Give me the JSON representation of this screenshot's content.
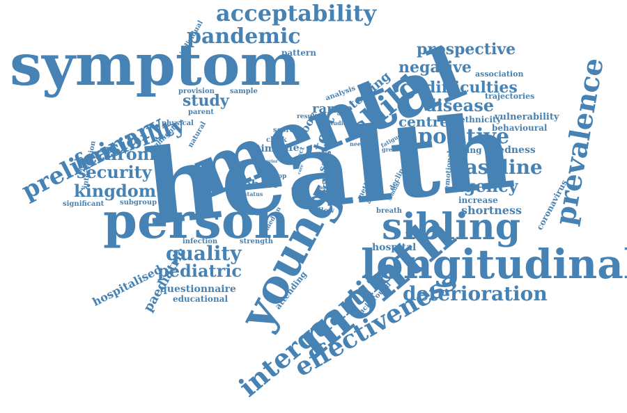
{
  "cloud": {
    "color": "#4682b4",
    "words": {
      "health": "health",
      "mental": "mental",
      "symptom": "symptom",
      "person": "person",
      "longitudinal": "longitudinal",
      "month": "month",
      "young": "young",
      "sibling": "sibling",
      "prevalence": "prevalence",
      "interquartile": "interquartile",
      "effectiveness": "effectiveness",
      "acceptability": "acceptability",
      "pandemic": "pandemic",
      "preliminary": "preliminary",
      "feasibility": "feasibility",
      "child": "child",
      "positive": "positive",
      "baseline": "baseline",
      "agency": "agency",
      "quality": "quality",
      "pediatric": "pediatric",
      "deterioration": "deterioration",
      "chronic": "chronic",
      "security": "security",
      "kingdom": "kingdom",
      "prospective": "prospective",
      "negative": "negative",
      "difficulties": "difficulties",
      "disease": "disease",
      "centre": "centre",
      "study": "study",
      "test": "test",
      "range": "range",
      "testing": "testing",
      "factor": "factor",
      "cohort": "cohort",
      "time": "time",
      "life": "life",
      "poor": "poor",
      "paediatric": "paediatric",
      "hospitalised": "hospitalised",
      "hospital": "hospital",
      "shortness": "shortness",
      "increase": "increase",
      "tiredness": "tiredness",
      "finding": "finding",
      "ethnicity": "ethnicity",
      "vulnerability": "vulnerability",
      "behavioural": "behavioural",
      "trajectories": "trajectories",
      "association": "association",
      "coronavirus": "coronavirus",
      "emotional": "emotional",
      "questionnaire": "questionnaire",
      "educational": "educational",
      "attending": "attending",
      "background": "background",
      "pattern": "pattern",
      "individual": "individual",
      "provision": "provision",
      "parent": "parent",
      "sample": "sample",
      "analysis": "analysis",
      "physical": "physical",
      "natural": "natural",
      "highlight": "highlight",
      "intervention": "intervention",
      "significant": "significant",
      "subgroup": "subgroup",
      "infection": "infection",
      "strength": "strength",
      "follow": "follow",
      "median": "median",
      "breath": "breath",
      "method": "method",
      "decline": "decline",
      "adverse": "adverse",
      "similar": "similar",
      "score": "score",
      "clock": "clock",
      "result": "result",
      "studies": "studies",
      "need": "need",
      "fatigue": "fatigue",
      "greater": "greater",
      "effect": "effect",
      "sars": "sars",
      "year": "year",
      "rate": "rate",
      "aged": "aged",
      "level": "level",
      "total": "total",
      "drop": "drop",
      "status": "status",
      "prior": "prior",
      "care": "care"
    }
  }
}
